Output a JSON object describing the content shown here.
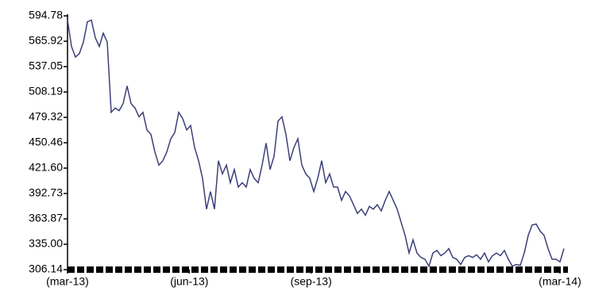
{
  "chart_data": {
    "type": "line",
    "x": [
      0,
      3,
      6,
      9,
      12,
      15,
      18,
      21,
      24,
      27,
      30,
      33,
      36,
      39,
      42,
      45,
      48,
      51,
      54,
      57,
      60,
      63,
      66,
      69,
      72,
      75,
      78,
      81,
      84,
      87,
      90,
      93,
      96,
      99,
      102,
      105,
      108,
      111,
      114,
      117,
      120,
      123,
      126,
      129,
      132,
      135,
      138,
      141,
      144,
      147,
      150,
      153,
      156,
      159,
      162,
      165,
      168,
      171,
      174,
      177,
      180,
      183,
      186,
      189,
      192,
      195,
      198,
      201,
      204,
      207,
      210,
      213,
      216,
      219,
      222,
      225,
      228,
      231,
      234,
      237,
      240,
      243,
      246,
      249,
      252,
      255,
      258,
      261,
      264,
      267,
      270,
      273,
      276,
      279,
      282,
      285,
      288,
      291,
      294,
      297,
      300,
      303,
      306,
      309,
      312,
      315,
      318,
      321,
      324,
      327,
      330,
      333,
      336,
      339,
      342,
      345,
      348,
      351,
      354,
      357,
      360,
      363,
      366,
      369,
      372,
      375
    ],
    "series": [
      {
        "color": "#3c3f78",
        "values": [
          590,
          560,
          548,
          552,
          565,
          588,
          590,
          570,
          560,
          575,
          565,
          485,
          490,
          487,
          495,
          515,
          495,
          490,
          480,
          485,
          465,
          460,
          440,
          425,
          430,
          440,
          455,
          462,
          485,
          478,
          465,
          470,
          445,
          430,
          410,
          375,
          395,
          375,
          430,
          415,
          425,
          405,
          420,
          400,
          405,
          400,
          420,
          410,
          405,
          425,
          450,
          420,
          435,
          475,
          480,
          460,
          430,
          445,
          455,
          425,
          415,
          410,
          395,
          410,
          430,
          405,
          415,
          400,
          400,
          385,
          395,
          390,
          380,
          370,
          375,
          368,
          378,
          375,
          380,
          373,
          385,
          395,
          385,
          375,
          360,
          345,
          325,
          340,
          325,
          320,
          318,
          310,
          325,
          328,
          322,
          325,
          330,
          320,
          318,
          312,
          320,
          322,
          320,
          323,
          318,
          325,
          315,
          322,
          325,
          322,
          328,
          318,
          310,
          312,
          311,
          325,
          345,
          357,
          358,
          350,
          345,
          330,
          318,
          318,
          315,
          330
        ]
      }
    ],
    "xlim": [
      0,
      375
    ],
    "xticks": [
      {
        "value": 0,
        "label": "(mar-13)"
      },
      {
        "value": 92,
        "label": "(jun-13)"
      },
      {
        "value": 184,
        "label": "(sep-13)"
      },
      {
        "value": 372,
        "label": "(mar-14)"
      }
    ],
    "ylim": [
      306.14,
      594.78
    ],
    "yticks": [
      306.14,
      {
        "value": 335,
        "label": "335.00"
      },
      363.87,
      392.73,
      {
        "value": 421.6,
        "label": "421.60"
      },
      450.46,
      479.32,
      508.19,
      537.05,
      565.92,
      594.78
    ]
  }
}
